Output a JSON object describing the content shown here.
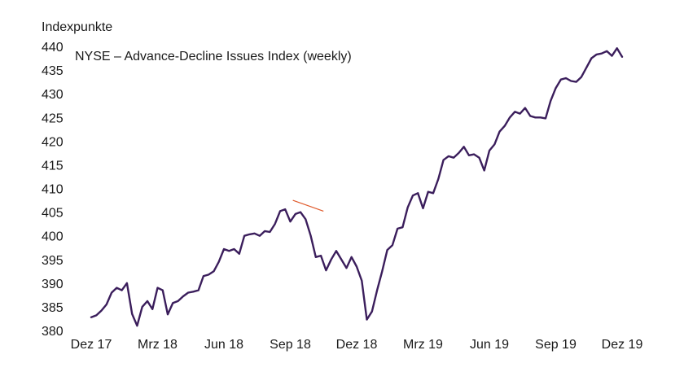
{
  "chart_data": {
    "type": "line",
    "title": "NYSE – Advance-Decline Issues Index (weekly)",
    "ylabel": "Indexpunkte",
    "xlabel": "",
    "ylim": [
      380,
      440
    ],
    "yticks": [
      380,
      385,
      390,
      395,
      400,
      405,
      410,
      415,
      420,
      425,
      430,
      435,
      440
    ],
    "xtick_labels": [
      "Dez 17",
      "Mrz 18",
      "Jun 18",
      "Sep 18",
      "Dez 18",
      "Mrz 19",
      "Jun 19",
      "Sep 19",
      "Dez 19"
    ],
    "x_range_weeks": [
      0,
      104
    ],
    "grid": false,
    "line_color": "#3b1e5c",
    "annotation_color": "#e05a2b",
    "series": [
      {
        "values": [
          [
            0,
            382.8
          ],
          [
            1,
            383.2
          ],
          [
            2,
            384.2
          ],
          [
            3,
            385.5
          ],
          [
            4,
            388.0
          ],
          [
            5,
            389.0
          ],
          [
            6,
            388.5
          ],
          [
            7,
            390.0
          ],
          [
            8,
            383.5
          ],
          [
            9,
            381.0
          ],
          [
            10,
            385.0
          ],
          [
            11,
            386.2
          ],
          [
            12,
            384.5
          ],
          [
            13,
            389.0
          ],
          [
            14,
            388.5
          ],
          [
            15,
            383.4
          ],
          [
            16,
            385.8
          ],
          [
            17,
            386.2
          ],
          [
            18,
            387.2
          ],
          [
            19,
            388.0
          ],
          [
            20,
            388.2
          ],
          [
            21,
            388.5
          ],
          [
            22,
            391.5
          ],
          [
            23,
            391.8
          ],
          [
            24,
            392.5
          ],
          [
            25,
            394.5
          ],
          [
            26,
            397.2
          ],
          [
            27,
            396.8
          ],
          [
            28,
            397.2
          ],
          [
            29,
            396.2
          ],
          [
            30,
            400.0
          ],
          [
            31,
            400.3
          ],
          [
            32,
            400.5
          ],
          [
            33,
            400.0
          ],
          [
            34,
            401.0
          ],
          [
            35,
            400.8
          ],
          [
            36,
            402.5
          ],
          [
            37,
            405.2
          ],
          [
            38,
            405.6
          ],
          [
            39,
            403.0
          ],
          [
            40,
            404.6
          ],
          [
            41,
            405.0
          ],
          [
            42,
            403.5
          ],
          [
            43,
            400.0
          ],
          [
            44,
            395.5
          ],
          [
            45,
            395.8
          ],
          [
            46,
            392.7
          ],
          [
            47,
            395.0
          ],
          [
            48,
            396.8
          ],
          [
            49,
            395.0
          ],
          [
            50,
            393.2
          ],
          [
            51,
            395.5
          ],
          [
            52,
            393.5
          ],
          [
            53,
            390.5
          ],
          [
            54,
            382.3
          ],
          [
            55,
            384.0
          ],
          [
            56,
            388.5
          ],
          [
            57,
            392.5
          ],
          [
            58,
            397.0
          ],
          [
            59,
            398.0
          ],
          [
            60,
            401.5
          ],
          [
            61,
            401.8
          ],
          [
            62,
            406.0
          ],
          [
            63,
            408.5
          ],
          [
            64,
            409.0
          ],
          [
            65,
            405.8
          ],
          [
            66,
            409.3
          ],
          [
            67,
            409.0
          ],
          [
            68,
            412.0
          ],
          [
            69,
            416.0
          ],
          [
            70,
            416.8
          ],
          [
            71,
            416.5
          ],
          [
            72,
            417.5
          ],
          [
            73,
            418.8
          ],
          [
            74,
            417.0
          ],
          [
            75,
            417.2
          ],
          [
            76,
            416.5
          ],
          [
            77,
            413.8
          ],
          [
            78,
            418.0
          ],
          [
            79,
            419.3
          ],
          [
            80,
            422.0
          ],
          [
            81,
            423.2
          ],
          [
            82,
            425.0
          ],
          [
            83,
            426.2
          ],
          [
            84,
            425.8
          ],
          [
            85,
            427.0
          ],
          [
            86,
            425.3
          ],
          [
            87,
            425.0
          ],
          [
            88,
            425.0
          ],
          [
            89,
            424.8
          ],
          [
            90,
            428.5
          ],
          [
            91,
            431.2
          ],
          [
            92,
            433.0
          ],
          [
            93,
            433.3
          ],
          [
            94,
            432.7
          ],
          [
            95,
            432.5
          ],
          [
            96,
            433.5
          ],
          [
            97,
            435.5
          ],
          [
            98,
            437.5
          ],
          [
            99,
            438.3
          ],
          [
            100,
            438.5
          ],
          [
            101,
            439.0
          ],
          [
            102,
            438.0
          ],
          [
            103,
            439.6
          ],
          [
            104,
            437.8
          ]
        ]
      }
    ],
    "annotation_line": {
      "from": [
        39.5,
        407.5
      ],
      "to": [
        45.5,
        405.2
      ]
    }
  }
}
